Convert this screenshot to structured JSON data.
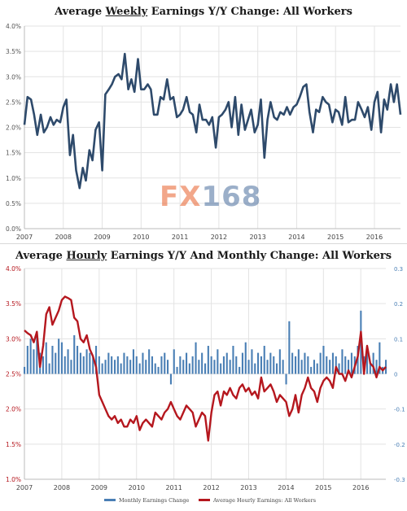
{
  "chart_data": [
    {
      "type": "line",
      "title_pre": "Average ",
      "title_u": "Weekly",
      "title_post": " Earnings Y/Y Change: All Workers",
      "ylim": [
        0,
        4
      ],
      "yticks": [
        "0.0%",
        "0.5%",
        "1.0%",
        "1.5%",
        "2.0%",
        "2.5%",
        "3.0%",
        "3.5%",
        "4.0%"
      ],
      "xticks": [
        "2007",
        "2008",
        "2009",
        "2010",
        "2011",
        "2012",
        "2013",
        "2014",
        "2015",
        "2016"
      ],
      "xlim": [
        2007,
        2016.67
      ],
      "grid": true,
      "color": "#2e4a6b",
      "series": [
        {
          "x": [
            2007.0,
            2007.08,
            2007.17,
            2007.25,
            2007.33,
            2007.42,
            2007.5,
            2007.58,
            2007.67,
            2007.75,
            2007.83,
            2007.92,
            2008.0,
            2008.08,
            2008.17,
            2008.25,
            2008.33,
            2008.42,
            2008.5,
            2008.58,
            2008.67,
            2008.75,
            2008.83,
            2008.92,
            2009.0,
            2009.08,
            2009.17,
            2009.25,
            2009.33,
            2009.42,
            2009.5,
            2009.58,
            2009.67,
            2009.75,
            2009.83,
            2009.92,
            2010.0,
            2010.08,
            2010.17,
            2010.25,
            2010.33,
            2010.42,
            2010.5,
            2010.58,
            2010.67,
            2010.75,
            2010.83,
            2010.92,
            2011.0,
            2011.08,
            2011.17,
            2011.25,
            2011.33,
            2011.42,
            2011.5,
            2011.58,
            2011.67,
            2011.75,
            2011.83,
            2011.92,
            2012.0,
            2012.08,
            2012.17,
            2012.25,
            2012.33,
            2012.42,
            2012.5,
            2012.58,
            2012.67,
            2012.75,
            2012.83,
            2012.92,
            2013.0,
            2013.08,
            2013.17,
            2013.25,
            2013.33,
            2013.42,
            2013.5,
            2013.58,
            2013.67,
            2013.75,
            2013.83,
            2013.92,
            2014.0,
            2014.08,
            2014.17,
            2014.25,
            2014.33,
            2014.42,
            2014.5,
            2014.58,
            2014.67,
            2014.75,
            2014.83,
            2014.92,
            2015.0,
            2015.08,
            2015.17,
            2015.25,
            2015.33,
            2015.42,
            2015.5,
            2015.58,
            2015.67,
            2015.75,
            2015.83,
            2015.92,
            2016.0,
            2016.08,
            2016.17,
            2016.25,
            2016.33,
            2016.42,
            2016.5,
            2016.58,
            2016.67
          ],
          "y": [
            2.05,
            2.6,
            2.55,
            2.25,
            1.85,
            2.25,
            1.9,
            2.0,
            2.2,
            2.05,
            2.15,
            2.1,
            2.4,
            2.55,
            1.45,
            1.85,
            1.15,
            0.8,
            1.2,
            0.95,
            1.55,
            1.35,
            1.95,
            2.1,
            1.15,
            2.65,
            2.75,
            2.85,
            3.0,
            3.05,
            2.95,
            3.45,
            2.75,
            2.95,
            2.7,
            3.35,
            2.75,
            2.75,
            2.85,
            2.75,
            2.25,
            2.25,
            2.6,
            2.55,
            2.95,
            2.55,
            2.6,
            2.2,
            2.25,
            2.35,
            2.6,
            2.3,
            2.25,
            1.9,
            2.45,
            2.15,
            2.15,
            2.05,
            2.2,
            1.6,
            2.2,
            2.25,
            2.35,
            2.5,
            2.0,
            2.6,
            1.85,
            2.45,
            1.95,
            2.15,
            2.35,
            1.9,
            2.05,
            2.55,
            1.4,
            2.15,
            2.5,
            2.2,
            2.15,
            2.3,
            2.25,
            2.4,
            2.25,
            2.4,
            2.45,
            2.6,
            2.8,
            2.85,
            2.3,
            1.9,
            2.35,
            2.3,
            2.6,
            2.5,
            2.45,
            2.1,
            2.35,
            2.3,
            2.05,
            2.6,
            2.1,
            2.15,
            2.15,
            2.5,
            2.35,
            2.2,
            2.4,
            1.95,
            2.5,
            2.7,
            1.9,
            2.55,
            2.35,
            2.85,
            2.5,
            2.85,
            2.25
          ]
        }
      ]
    },
    {
      "type": "bar+line",
      "title_pre": "Average ",
      "title_u": "Hourly",
      "title_post": " Earnings Y/Y And Monthly Change: All Workers",
      "ylim_left": [
        1.0,
        4.0
      ],
      "yticks_left": [
        "1.0%",
        "1.5%",
        "2.0%",
        "2.5%",
        "3.0%",
        "3.5%",
        "4.0%"
      ],
      "ylim_right": [
        -0.3,
        0.3
      ],
      "yticks_right": [
        "-0.3",
        "-0.2",
        "-0.1",
        "0",
        "0.1",
        "0.2",
        "0.3"
      ],
      "xticks": [
        "2007",
        "2008",
        "2009",
        "2010",
        "2011",
        "2012",
        "2013",
        "2014",
        "2015",
        "2016"
      ],
      "xlim": [
        2007,
        2016.67
      ],
      "grid": true,
      "legend_position": "bottom",
      "series": [
        {
          "name": "Monthly Earnings Change",
          "axis": "right",
          "color": "#4a7fb5",
          "values": [
            0.02,
            0.08,
            0.1,
            0.07,
            0.12,
            0.06,
            0.05,
            0.09,
            0.03,
            0.08,
            0.06,
            0.1,
            0.09,
            0.05,
            0.07,
            0.04,
            0.11,
            0.08,
            0.06,
            0.05,
            0.07,
            0.06,
            0.05,
            0.08,
            0.05,
            0.03,
            0.04,
            0.06,
            0.05,
            0.04,
            0.05,
            0.03,
            0.06,
            0.05,
            0.04,
            0.07,
            0.05,
            0.03,
            0.06,
            0.04,
            0.07,
            0.05,
            0.03,
            0.02,
            0.05,
            0.06,
            0.04,
            -0.03,
            0.07,
            0.02,
            0.05,
            0.04,
            0.06,
            0.03,
            0.05,
            0.09,
            0.04,
            0.06,
            0.03,
            0.08,
            0.05,
            0.04,
            0.07,
            0.03,
            0.05,
            0.06,
            0.04,
            0.08,
            0.05,
            0.02,
            0.06,
            0.09,
            0.04,
            0.07,
            0.03,
            0.06,
            0.05,
            0.08,
            0.04,
            0.06,
            0.05,
            0.03,
            0.07,
            0.04,
            -0.03,
            0.15,
            0.06,
            0.05,
            0.07,
            0.04,
            0.06,
            0.05,
            0.02,
            0.04,
            0.03,
            0.06,
            0.08,
            0.05,
            0.04,
            0.06,
            0.05,
            0.03,
            0.07,
            0.05,
            0.04,
            0.06,
            0.05,
            0.08,
            0.18,
            0.05,
            0.07,
            0.03,
            0.06,
            0.04,
            0.09,
            0.02,
            0.04
          ]
        },
        {
          "name": "Average Hourly Earnings: All Workers",
          "axis": "left",
          "color": "#b5171e",
          "values": [
            3.12,
            3.08,
            3.05,
            2.95,
            3.1,
            2.6,
            2.9,
            3.35,
            3.45,
            3.2,
            3.3,
            3.4,
            3.55,
            3.6,
            3.58,
            3.55,
            3.3,
            3.25,
            3.0,
            2.95,
            3.05,
            2.85,
            2.75,
            2.6,
            2.2,
            2.1,
            2.0,
            1.9,
            1.85,
            1.9,
            1.8,
            1.85,
            1.75,
            1.75,
            1.85,
            1.8,
            1.9,
            1.7,
            1.8,
            1.85,
            1.8,
            1.75,
            1.95,
            1.9,
            1.85,
            1.95,
            2.0,
            2.1,
            2.0,
            1.9,
            1.85,
            1.95,
            2.05,
            2.0,
            1.95,
            1.75,
            1.85,
            1.95,
            1.9,
            1.55,
            1.95,
            2.2,
            2.25,
            2.05,
            2.25,
            2.2,
            2.3,
            2.2,
            2.15,
            2.3,
            2.35,
            2.25,
            2.3,
            2.2,
            2.25,
            2.15,
            2.45,
            2.25,
            2.3,
            2.35,
            2.25,
            2.1,
            2.2,
            2.15,
            2.1,
            1.9,
            2.0,
            2.2,
            1.95,
            2.2,
            2.3,
            2.45,
            2.3,
            2.25,
            2.1,
            2.3,
            2.4,
            2.45,
            2.4,
            2.3,
            2.6,
            2.5,
            2.5,
            2.4,
            2.55,
            2.45,
            2.6,
            2.75,
            3.1,
            2.5,
            2.9,
            2.65,
            2.6,
            2.45,
            2.6,
            2.55,
            2.6
          ]
        }
      ]
    }
  ],
  "watermark": {
    "fx": "FX",
    "num": "168"
  }
}
